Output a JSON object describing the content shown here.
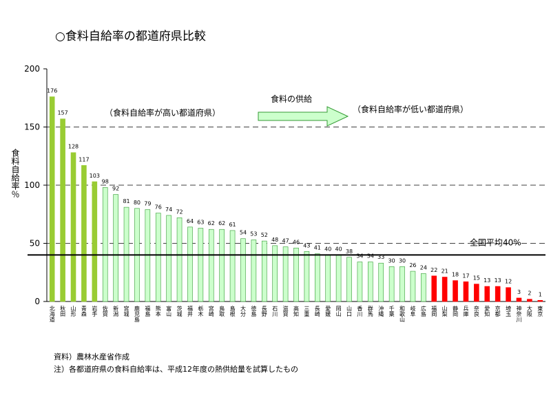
{
  "chart_data": {
    "type": "bar",
    "title": "○食料自給率の都道府県比較",
    "y_label": "食料自給率％",
    "categories": [
      "北海道",
      "秋田",
      "山形",
      "青森",
      "岩手",
      "佐賀",
      "新潟",
      "宮城",
      "鹿児島",
      "福島",
      "熊本",
      "富山",
      "茨城",
      "福井",
      "栃木",
      "宮崎",
      "鳥取",
      "島根",
      "大分",
      "徳島",
      "長野",
      "石川",
      "滋賀",
      "高知",
      "三重",
      "長崎",
      "愛媛",
      "岡山",
      "山口",
      "香川",
      "群馬",
      "沖縄",
      "千葉",
      "和歌山",
      "岐阜",
      "広島",
      "福岡",
      "山梨",
      "静岡",
      "兵庫",
      "奈良",
      "愛知",
      "京都",
      "埼玉",
      "神奈川",
      "大阪",
      "東京"
    ],
    "values": [
      176,
      157,
      128,
      117,
      103,
      98,
      92,
      81,
      80,
      79,
      76,
      74,
      72,
      64,
      63,
      62,
      62,
      61,
      54,
      53,
      52,
      48,
      47,
      46,
      43,
      41,
      40,
      40,
      38,
      34,
      34,
      33,
      30,
      30,
      26,
      24,
      22,
      21,
      18,
      17,
      15,
      13,
      13,
      12,
      3,
      2,
      1
    ],
    "colors": [
      "#99cc33",
      "#99cc33",
      "#99cc33",
      "#99cc33",
      "#99cc33",
      "#ccffcc",
      "#ccffcc",
      "#ccffcc",
      "#ccffcc",
      "#ccffcc",
      "#ccffcc",
      "#ccffcc",
      "#ccffcc",
      "#ccffcc",
      "#ccffcc",
      "#ccffcc",
      "#ccffcc",
      "#ccffcc",
      "#ccffcc",
      "#ccffcc",
      "#ccffcc",
      "#ccffcc",
      "#ccffcc",
      "#ccffcc",
      "#ccffcc",
      "#ccffcc",
      "#ccffcc",
      "#ccffcc",
      "#ccffcc",
      "#ccffcc",
      "#ccffcc",
      "#ccffcc",
      "#ccffcc",
      "#ccffcc",
      "#ccffcc",
      "#ccffcc",
      "#ff0000",
      "#ff0000",
      "#ff0000",
      "#ff0000",
      "#ff0000",
      "#ff0000",
      "#ff0000",
      "#ff0000",
      "#ff0000",
      "#ff0000",
      "#ff0000"
    ],
    "ylim": [
      0,
      200
    ],
    "yticks": [
      0,
      50,
      100,
      150,
      200
    ],
    "grid": true,
    "reference_line": {
      "value": 40,
      "label": "全国平均40%"
    },
    "annotations": [
      "（食料自給率が高い都道府県）",
      "食料の供給",
      "（食料自給率が低い都道府県）"
    ],
    "notes": [
      "資料）農林水産省作成",
      "注）各都道府県の食料自給率は、平成12年度の熱供給量を試算したもの"
    ]
  }
}
